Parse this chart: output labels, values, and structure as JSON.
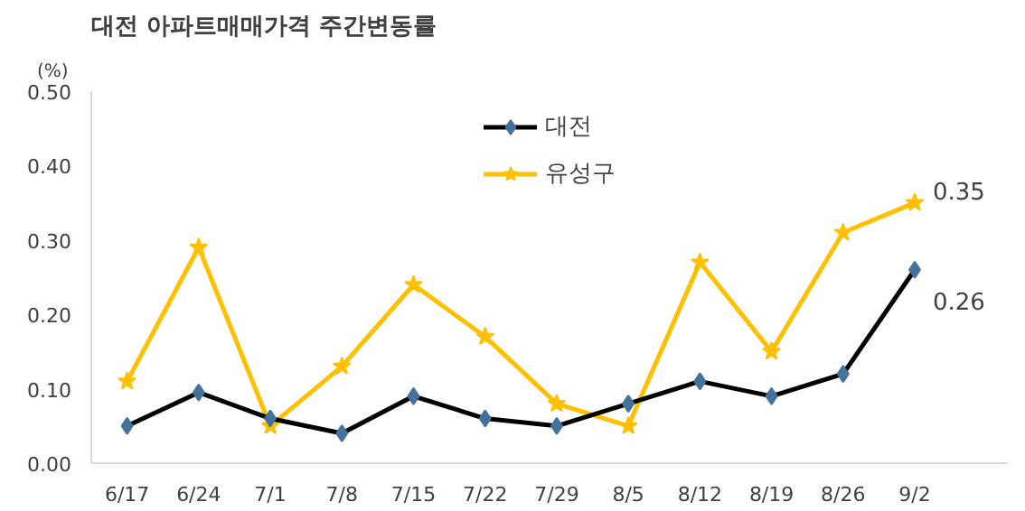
{
  "chart_data": {
    "type": "line",
    "title": "대전 아파트매매가격 주간변동률",
    "ylabel": "(%)",
    "categories": [
      "6/17",
      "6/24",
      "7/1",
      "7/8",
      "7/15",
      "7/22",
      "7/29",
      "8/5",
      "8/12",
      "8/19",
      "8/26",
      "9/2"
    ],
    "series": [
      {
        "name": "대전",
        "color": "#000000",
        "marker": "diamond",
        "values": [
          0.05,
          0.095,
          0.06,
          0.04,
          0.09,
          0.06,
          0.05,
          0.08,
          0.11,
          0.09,
          0.12,
          0.26
        ],
        "value_labels": [
          null,
          null,
          null,
          null,
          null,
          null,
          null,
          null,
          null,
          null,
          null,
          "0.26"
        ]
      },
      {
        "name": "유성구",
        "color": "#ffc000",
        "marker": "star",
        "values": [
          0.11,
          0.29,
          0.05,
          0.13,
          0.24,
          0.17,
          0.08,
          0.05,
          0.27,
          0.15,
          0.31,
          0.35
        ],
        "value_labels": [
          null,
          null,
          null,
          null,
          null,
          null,
          null,
          null,
          null,
          null,
          null,
          "0.35"
        ]
      }
    ],
    "ylim": [
      0,
      0.5
    ],
    "yticks": [
      {
        "value": 0,
        "label": "0.00"
      },
      {
        "value": 0.1,
        "label": "0.10"
      },
      {
        "value": 0.2,
        "label": "0.20"
      },
      {
        "value": 0.3,
        "label": "0.30"
      },
      {
        "value": 0.4,
        "label": "0.40"
      },
      {
        "value": 0.5,
        "label": "0.50"
      }
    ],
    "grid": false,
    "legend": "top"
  }
}
